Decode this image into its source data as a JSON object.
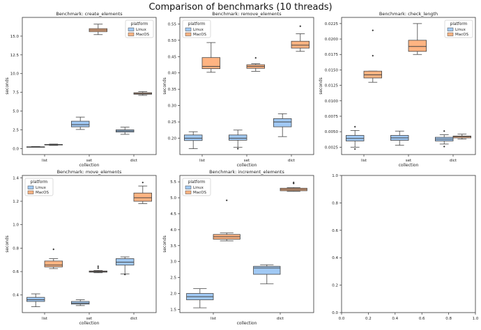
{
  "title": "Comparison of benchmarks (10 threads)",
  "colors": {
    "linux_fill": "#a1c9f4",
    "macos_fill": "#ffb482",
    "edge": "#444444",
    "legend_border": "#cccccc"
  },
  "legend": {
    "title": "platform",
    "entries": [
      "Linux",
      "MacOS"
    ]
  },
  "chart_data": [
    {
      "type": "box",
      "title": "Benchmark: create_elements",
      "xlabel": "collection",
      "ylabel": "seconds",
      "categories": [
        "list",
        "set",
        "dict"
      ],
      "ylim": [
        -0.8,
        17.5
      ],
      "yticks": [
        0,
        2.5,
        5,
        7.5,
        10,
        12.5,
        15
      ],
      "tick_labels": [
        "0.0",
        "2.5",
        "5.0",
        "7.5",
        "10.0",
        "12.5",
        "15.0"
      ],
      "legend_position": "top-right",
      "series": [
        {
          "name": "Linux",
          "boxes": [
            {
              "min": 0.18,
              "q1": 0.2,
              "median": 0.22,
              "q3": 0.24,
              "max": 0.27,
              "outliers": []
            },
            {
              "min": 2.55,
              "q1": 2.9,
              "median": 3.2,
              "q3": 3.65,
              "max": 4.2,
              "outliers": []
            },
            {
              "min": 1.9,
              "q1": 2.2,
              "median": 2.35,
              "q3": 2.5,
              "max": 2.85,
              "outliers": []
            }
          ]
        },
        {
          "name": "MacOS",
          "boxes": [
            {
              "min": 0.42,
              "q1": 0.48,
              "median": 0.52,
              "q3": 0.55,
              "max": 0.6,
              "outliers": []
            },
            {
              "min": 15.2,
              "q1": 15.6,
              "median": 15.8,
              "q3": 16.0,
              "max": 16.6,
              "outliers": []
            },
            {
              "min": 7.1,
              "q1": 7.25,
              "median": 7.35,
              "q3": 7.45,
              "max": 7.6,
              "outliers": []
            }
          ]
        }
      ]
    },
    {
      "type": "box",
      "title": "Benchmark: remove_elements",
      "xlabel": "collection",
      "ylabel": "seconds",
      "categories": [
        "list",
        "set",
        "dict"
      ],
      "ylim": [
        0.15,
        0.57
      ],
      "yticks": [
        0.2,
        0.25,
        0.3,
        0.35,
        0.4,
        0.45,
        0.5,
        0.55
      ],
      "tick_labels": [
        "0.20",
        "0.25",
        "0.30",
        "0.35",
        "0.40",
        "0.45",
        "0.50",
        "0.55"
      ],
      "legend_position": "top-left",
      "series": [
        {
          "name": "Linux",
          "boxes": [
            {
              "min": 0.168,
              "q1": 0.193,
              "median": 0.2,
              "q3": 0.21,
              "max": 0.22,
              "outliers": []
            },
            {
              "min": 0.172,
              "q1": 0.194,
              "median": 0.2,
              "q3": 0.21,
              "max": 0.225,
              "outliers": [
                0.168
              ]
            },
            {
              "min": 0.205,
              "q1": 0.235,
              "median": 0.25,
              "q3": 0.26,
              "max": 0.275,
              "outliers": []
            }
          ]
        },
        {
          "name": "MacOS",
          "boxes": [
            {
              "min": 0.402,
              "q1": 0.413,
              "median": 0.42,
              "q3": 0.447,
              "max": 0.493,
              "outliers": []
            },
            {
              "min": 0.405,
              "q1": 0.414,
              "median": 0.42,
              "q3": 0.425,
              "max": 0.428,
              "outliers": [
                0.446
              ]
            },
            {
              "min": 0.466,
              "q1": 0.476,
              "median": 0.485,
              "q3": 0.497,
              "max": 0.52,
              "outliers": [
                0.543
              ]
            }
          ]
        }
      ]
    },
    {
      "type": "box",
      "title": "Benchmark: check_length",
      "xlabel": "collection",
      "ylabel": "seconds",
      "categories": [
        "list",
        "set",
        "dict"
      ],
      "ylim": [
        0.0013,
        0.0235
      ],
      "yticks": [
        0.0025,
        0.005,
        0.0075,
        0.01,
        0.0125,
        0.015,
        0.0175,
        0.02,
        0.0225
      ],
      "tick_labels": [
        "0.0025",
        "0.0050",
        "0.0075",
        "0.0100",
        "0.0125",
        "0.0150",
        "0.0175",
        "0.0200",
        "0.0225"
      ],
      "legend_position": "top-right",
      "series": [
        {
          "name": "Linux",
          "boxes": [
            {
              "min": 0.0025,
              "q1": 0.0035,
              "median": 0.0039,
              "q3": 0.0044,
              "max": 0.0052,
              "outliers": [
                0.0058,
                0.0022
              ]
            },
            {
              "min": 0.0028,
              "q1": 0.0036,
              "median": 0.004,
              "q3": 0.0044,
              "max": 0.0051,
              "outliers": []
            },
            {
              "min": 0.003,
              "q1": 0.0035,
              "median": 0.0038,
              "q3": 0.0041,
              "max": 0.0045,
              "outliers": [
                0.0051,
                0.0026
              ]
            }
          ]
        },
        {
          "name": "MacOS",
          "boxes": [
            {
              "min": 0.013,
              "q1": 0.0137,
              "median": 0.0142,
              "q3": 0.0148,
              "max": 0.0148,
              "outliers": [
                0.0173,
                0.0214
              ]
            },
            {
              "min": 0.0175,
              "q1": 0.018,
              "median": 0.0188,
              "q3": 0.0198,
              "max": 0.0225,
              "outliers": []
            },
            {
              "min": 0.0038,
              "q1": 0.004,
              "median": 0.0042,
              "q3": 0.0043,
              "max": 0.0046,
              "outliers": []
            }
          ]
        }
      ]
    },
    {
      "type": "box",
      "title": "Benchmark: move_elements",
      "xlabel": "collection",
      "ylabel": "seconds",
      "categories": [
        "list",
        "set",
        "dict"
      ],
      "ylim": [
        0.25,
        1.42
      ],
      "yticks": [
        0.4,
        0.6,
        0.8,
        1.0,
        1.2,
        1.4
      ],
      "tick_labels": [
        "0.4",
        "0.6",
        "0.8",
        "1.0",
        "1.2",
        "1.4"
      ],
      "legend_position": "top-left",
      "series": [
        {
          "name": "Linux",
          "boxes": [
            {
              "min": 0.3,
              "q1": 0.345,
              "median": 0.36,
              "q3": 0.38,
              "max": 0.41,
              "outliers": []
            },
            {
              "min": 0.31,
              "q1": 0.322,
              "median": 0.33,
              "q3": 0.345,
              "max": 0.36,
              "outliers": []
            },
            {
              "min": 0.58,
              "q1": 0.655,
              "median": 0.68,
              "q3": 0.71,
              "max": 0.725,
              "outliers": [
                0.575
              ]
            }
          ]
        },
        {
          "name": "MacOS",
          "boxes": [
            {
              "min": 0.625,
              "q1": 0.64,
              "median": 0.655,
              "q3": 0.69,
              "max": 0.71,
              "outliers": [
                0.79
              ]
            },
            {
              "min": 0.59,
              "q1": 0.595,
              "median": 0.6,
              "q3": 0.605,
              "max": 0.61,
              "outliers": [
                0.63,
                0.645
              ]
            },
            {
              "min": 1.18,
              "q1": 1.2,
              "median": 1.23,
              "q3": 1.27,
              "max": 1.33,
              "outliers": [
                1.36
              ]
            }
          ]
        }
      ]
    },
    {
      "type": "box",
      "title": "Benchmark: increment_elements",
      "xlabel": "collection",
      "ylabel": "seconds",
      "categories": [
        "list",
        "dict"
      ],
      "ylim": [
        1.4,
        5.7
      ],
      "yticks": [
        1.5,
        2.0,
        2.5,
        3.0,
        3.5,
        4.0,
        4.5,
        5.0,
        5.5
      ],
      "tick_labels": [
        "1.5",
        "2.0",
        "2.5",
        "3.0",
        "3.5",
        "4.0",
        "4.5",
        "5.0",
        "5.5"
      ],
      "legend_position": "top-left",
      "series": [
        {
          "name": "Linux",
          "boxes": [
            {
              "min": 1.55,
              "q1": 1.8,
              "median": 1.9,
              "q3": 2.0,
              "max": 2.15,
              "outliers": []
            },
            {
              "min": 2.3,
              "q1": 2.6,
              "median": 2.8,
              "q3": 2.85,
              "max": 2.9,
              "outliers": []
            }
          ]
        },
        {
          "name": "MacOS",
          "boxes": [
            {
              "min": 3.65,
              "q1": 3.7,
              "median": 3.78,
              "q3": 3.85,
              "max": 3.9,
              "outliers": [
                4.92
              ]
            },
            {
              "min": 5.2,
              "q1": 5.22,
              "median": 5.26,
              "q3": 5.3,
              "max": 5.32,
              "outliers": [
                5.45,
                5.48
              ]
            }
          ]
        }
      ]
    },
    {
      "type": "empty",
      "title": "",
      "xlabel": "",
      "ylabel": "",
      "categories": [],
      "xlim": [
        0,
        1
      ],
      "ylim": [
        0,
        1
      ],
      "xticks": [
        0,
        0.2,
        0.4,
        0.6,
        0.8,
        1.0
      ],
      "xtick_labels": [
        "0.0",
        "0.2",
        "0.4",
        "0.6",
        "0.8",
        "1.0"
      ],
      "yticks": [
        0,
        0.2,
        0.4,
        0.6,
        0.8,
        1.0
      ],
      "tick_labels": [
        "0.0",
        "0.2",
        "0.4",
        "0.6",
        "0.8",
        "1.0"
      ],
      "series": []
    }
  ]
}
